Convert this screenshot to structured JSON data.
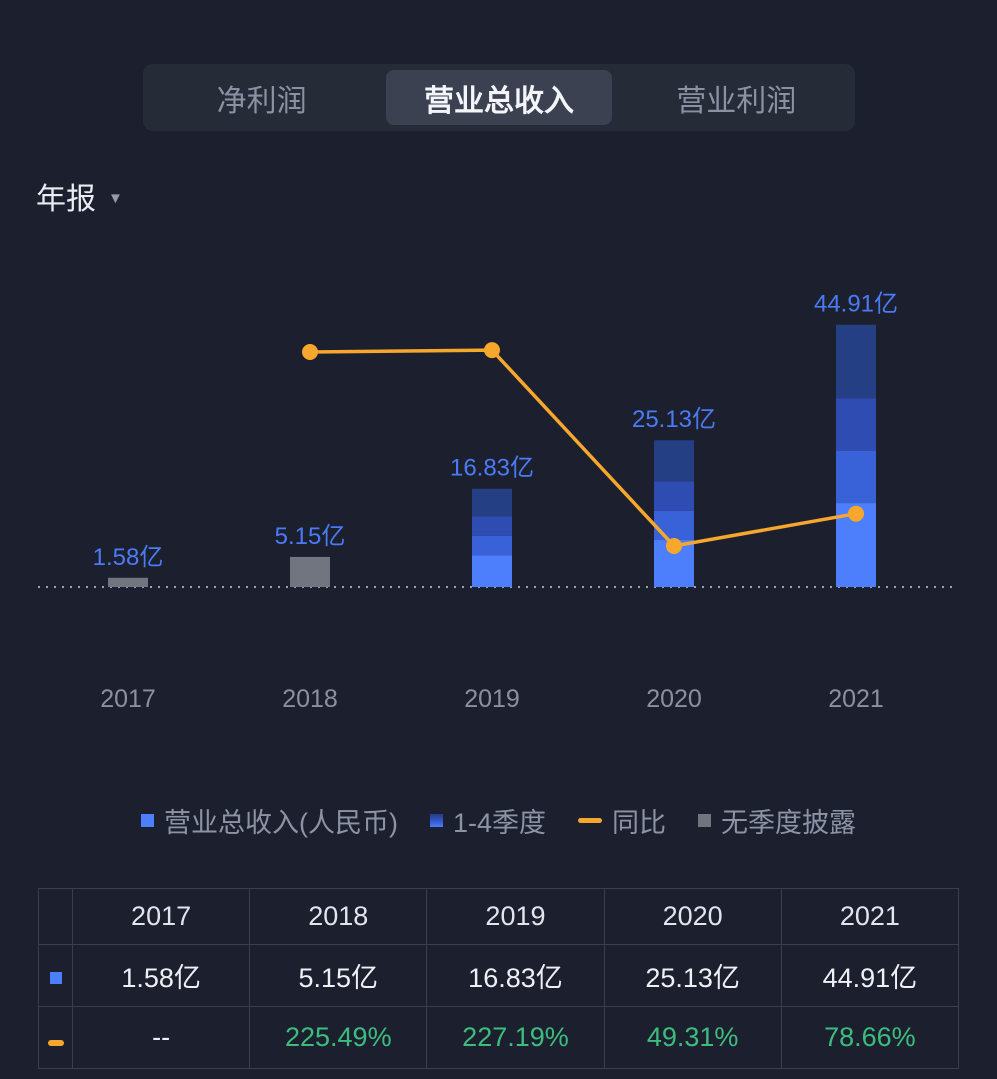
{
  "tabs": {
    "active_index": 1,
    "items": [
      {
        "label": "净利润"
      },
      {
        "label": "营业总收入"
      },
      {
        "label": "营业利润"
      }
    ]
  },
  "period_selector": {
    "label": "年报",
    "icon": "caret-down-icon"
  },
  "chart_data": {
    "type": "bar",
    "categories": [
      "2017",
      "2018",
      "2019",
      "2020",
      "2021"
    ],
    "series": [
      {
        "name": "营业总收入(人民币)",
        "type": "bar",
        "unit": "亿",
        "values": [
          1.58,
          5.15,
          16.83,
          25.13,
          44.91
        ],
        "data_labels": [
          "1.58亿",
          "5.15亿",
          "16.83亿",
          "25.13亿",
          "44.91亿"
        ],
        "quarterly_breakdown_shown": [
          false,
          false,
          true,
          true,
          true
        ]
      },
      {
        "name": "同比",
        "type": "line",
        "unit": "%",
        "values": [
          null,
          225.49,
          227.19,
          49.31,
          78.66
        ]
      }
    ],
    "legend": [
      {
        "label": "营业总收入(人民币)",
        "swatch": "blue-square"
      },
      {
        "label": "1-4季度",
        "swatch": "quarter-stack-square"
      },
      {
        "label": "同比",
        "swatch": "orange-dash"
      },
      {
        "label": "无季度披露",
        "swatch": "gray-square"
      }
    ],
    "baseline": 0,
    "grid": "dotted-zero-line-only",
    "legend_position": "bottom-center",
    "colors": {
      "bar_primary": "#4d7efb",
      "quarter_shades": [
        "#4d7efb",
        "#3a62d8",
        "#2e4cb2",
        "#253f85"
      ],
      "bar_no_quarterly": "#70757f",
      "line": "#f6a72c",
      "value_label": "#4a7bf6",
      "axis_label": "#8b90a0",
      "positive_pct": "#3dbd7d"
    }
  },
  "table": {
    "header": [
      "2017",
      "2018",
      "2019",
      "2020",
      "2021"
    ],
    "rows": [
      {
        "icon": "revenue-blue-square-icon",
        "cells": [
          "1.58亿",
          "5.15亿",
          "16.83亿",
          "25.13亿",
          "44.91亿"
        ]
      },
      {
        "icon": "yoy-orange-dash-icon",
        "cells": [
          "--",
          "225.49%",
          "227.19%",
          "49.31%",
          "78.66%"
        ]
      }
    ]
  }
}
